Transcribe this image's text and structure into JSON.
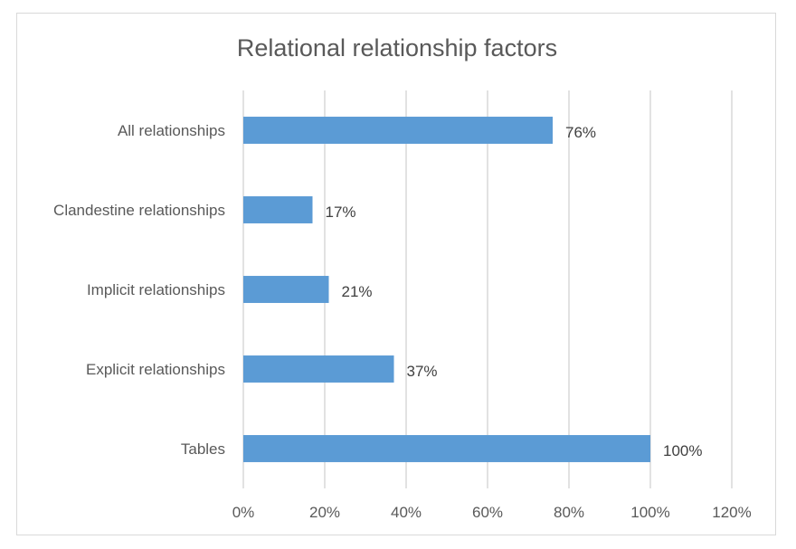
{
  "chart_data": {
    "type": "bar",
    "orientation": "horizontal",
    "title": "Relational relationship factors",
    "categories": [
      "All relationships",
      "Clandestine relationships",
      "Implicit relationships",
      "Explicit relationships",
      "Tables"
    ],
    "values": [
      76,
      17,
      21,
      37,
      100
    ],
    "data_labels": [
      "76%",
      "17%",
      "21%",
      "37%",
      "100%"
    ],
    "x_ticks": [
      "0%",
      "20%",
      "40%",
      "60%",
      "80%",
      "100%",
      "120%"
    ],
    "xlim": [
      0,
      120
    ],
    "xlabel": "",
    "ylabel": "",
    "grid": true,
    "legend": false,
    "bar_color": "#5b9bd5"
  }
}
